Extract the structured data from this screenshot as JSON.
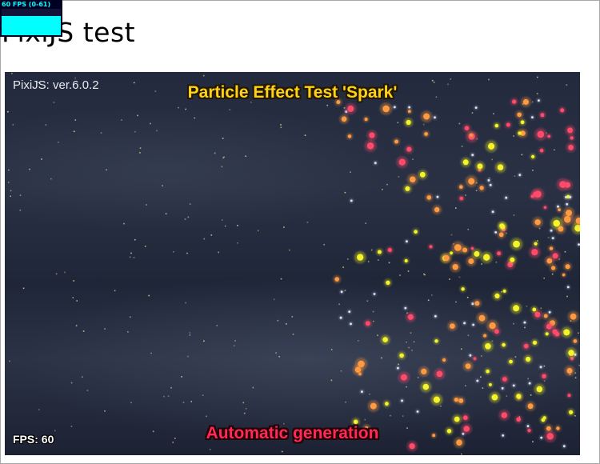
{
  "stats": {
    "fps_text": "60 FPS (0-61)",
    "colors": {
      "text": "#00ffff",
      "background": "#000022",
      "bars": "#00ffff"
    }
  },
  "page": {
    "title": "PixiJS test"
  },
  "game": {
    "version_text": "PixiJS: ver.6.0.2",
    "effect_title": "Particle Effect Test 'Spark'",
    "fps_text": "FPS: 60",
    "mode_text": "Automatic generation",
    "colors": {
      "title": "#ffd21a",
      "mode": "#ff2a55",
      "background": "#232a3d",
      "spark_orange": "#ff9a40",
      "spark_yellow": "#f4f428",
      "spark_pink": "#ff4a6a",
      "spark_white": "#dde4ff",
      "star": "#d8d48c"
    }
  }
}
